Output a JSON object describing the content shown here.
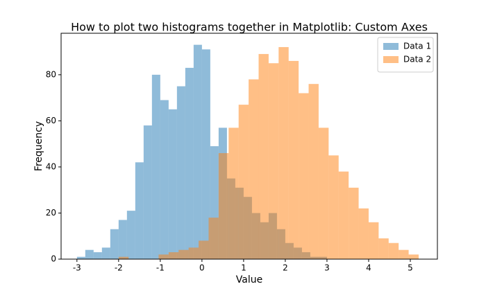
{
  "chart_data": {
    "type": "histogram",
    "title": "How to plot two histograms together in Matplotlib: Custom Axes",
    "xlabel": "Value",
    "ylabel": "Frequency",
    "xlim": [
      -3.38,
      5.65
    ],
    "ylim": [
      0,
      98
    ],
    "xticks": [
      -3,
      -2,
      -1,
      0,
      1,
      2,
      3,
      4,
      5
    ],
    "yticks": [
      0,
      20,
      40,
      60,
      80
    ],
    "legend": "upper right",
    "alpha": 0.5,
    "series": [
      {
        "name": "Data 1",
        "color": "#1f77b4",
        "bins": [
          -3.0,
          -2.8,
          -2.6,
          -2.4,
          -2.2,
          -2.0,
          -1.8,
          -1.6,
          -1.4,
          -1.2,
          -1.0,
          -0.8,
          -0.6,
          -0.4,
          -0.2,
          0.0,
          0.2,
          0.4,
          0.6,
          0.8,
          1.0,
          1.2,
          1.4,
          1.6,
          1.8,
          2.0,
          2.2,
          2.4,
          2.6,
          2.8,
          3.0
        ],
        "values": [
          1,
          4,
          3,
          5,
          13,
          17,
          21,
          42,
          58,
          80,
          69,
          65,
          75,
          83,
          93,
          91,
          49,
          57,
          35,
          31,
          27,
          20,
          16,
          20,
          13,
          7,
          5,
          3,
          1,
          1
        ]
      },
      {
        "name": "Data 2",
        "color": "#ff7f0e",
        "bins": [
          -2.0,
          -1.76,
          -1.52,
          -1.28,
          -1.04,
          -0.8,
          -0.56,
          -0.32,
          -0.08,
          0.16,
          0.4,
          0.64,
          0.88,
          1.12,
          1.36,
          1.6,
          1.84,
          2.08,
          2.32,
          2.56,
          2.8,
          3.04,
          3.28,
          3.52,
          3.76,
          4.0,
          4.24,
          4.48,
          4.72,
          4.96,
          5.2
        ],
        "values": [
          1,
          0,
          0,
          0,
          2,
          3,
          4,
          5,
          8,
          18,
          46,
          57,
          67,
          78,
          89,
          85,
          92,
          86,
          72,
          76,
          57,
          45,
          38,
          31,
          22,
          16,
          9,
          7,
          4,
          2
        ]
      }
    ]
  }
}
